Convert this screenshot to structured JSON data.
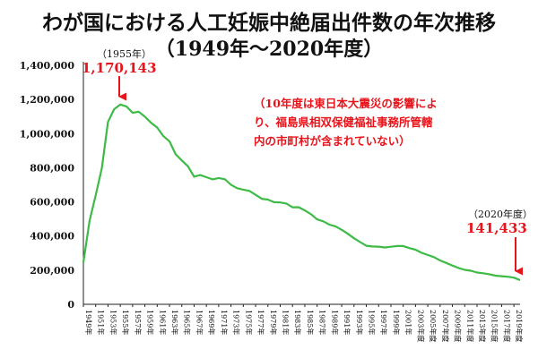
{
  "chart_data": {
    "type": "line",
    "title": "わが国における人工妊娠中絶届出件数の年次推移",
    "subtitle": "（1949年～2020年度）",
    "xlabel": "",
    "ylabel": "",
    "ylim": [
      0,
      1400000
    ],
    "yticks": [
      0,
      200000,
      400000,
      600000,
      800000,
      1000000,
      1200000,
      1400000
    ],
    "ytick_labels": [
      "0",
      "200,000",
      "400,000",
      "600,000",
      "800,000",
      "1,000,000",
      "1,200,000",
      "1,400,000"
    ],
    "xlim": [
      1949,
      2020
    ],
    "xtick_values": [
      1949,
      1951,
      1953,
      1955,
      1957,
      1959,
      1961,
      1963,
      1965,
      1967,
      1969,
      1971,
      1973,
      1975,
      1977,
      1979,
      1981,
      1983,
      1985,
      1987,
      1989,
      1991,
      1993,
      1995,
      1997,
      1999,
      2001,
      2003,
      2005,
      2007,
      2009,
      2011,
      2013,
      2015,
      2017,
      2019
    ],
    "xtick_labels": [
      "1949年",
      "1951年",
      "1953年",
      "1955年",
      "1957年",
      "1959年",
      "1961年",
      "1963年",
      "1965年",
      "1967年",
      "1969年",
      "1971年",
      "1973年",
      "1975年",
      "1977年",
      "1979年",
      "1981年",
      "1983年",
      "1985年",
      "1987年",
      "1989年",
      "1991年",
      "1993年",
      "1995年",
      "1997年",
      "1999年",
      "2001年",
      "2003年度",
      "2005年度",
      "2007年度",
      "2009年度",
      "2011年度",
      "2013年度",
      "2015年度",
      "2017年度",
      "2019年度"
    ],
    "grid": false,
    "color": "#3dbb46",
    "series": [
      {
        "x": [
          1949,
          1950,
          1951,
          1952,
          1953,
          1954,
          1955,
          1956,
          1957,
          1958,
          1959,
          1960,
          1961,
          1962,
          1963,
          1964,
          1965,
          1966,
          1967,
          1968,
          1969,
          1970,
          1971,
          1972,
          1973,
          1974,
          1975,
          1976,
          1977,
          1978,
          1979,
          1980,
          1981,
          1982,
          1983,
          1984,
          1985,
          1986,
          1987,
          1988,
          1989,
          1990,
          1991,
          1992,
          1993,
          1994,
          1995,
          1996,
          1997,
          1998,
          1999,
          2000,
          2001,
          2002,
          2003,
          2004,
          2005,
          2006,
          2007,
          2008,
          2009,
          2010,
          2011,
          2012,
          2013,
          2014,
          2015,
          2016,
          2017,
          2018,
          2019,
          2020
        ],
        "values": [
          246104,
          489111,
          638350,
          798193,
          1068066,
          1143059,
          1170143,
          1159288,
          1122316,
          1128231,
          1098853,
          1063256,
          1035329,
          985351,
          955092,
          878748,
          843248,
          808378,
          747490,
          757389,
          744451,
          732033,
          739674,
          732653,
          700532,
          679837,
          671597,
          664106,
          641242,
          618044,
          613676,
          598084,
          596569,
          590299,
          568363,
          568916,
          550127,
          527900,
          497756,
          486146,
          466876,
          456797,
          436299,
          413032,
          386807,
          364350,
          343024,
          338867,
          337799,
          333220,
          337288,
          341146,
          341588,
          329326,
          319831,
          301673,
          289127,
          276352,
          256672,
          242326,
          226878,
          212694,
          202106,
          196639,
          186253,
          181905,
          176388,
          168015,
          164621,
          161741,
          156430,
          141433
        ]
      }
    ],
    "annotations": [
      {
        "year_label": "（1955年）",
        "value_label": "1,170,143"
      },
      {
        "year_label": "（2020年度）",
        "value_label": "141,433"
      }
    ],
    "note_lines": [
      "（10年度は東日本大震災の影響によ",
      "り、福島県相双保健福祉事務所管轄",
      "内の市町村が含まれていない）"
    ]
  }
}
